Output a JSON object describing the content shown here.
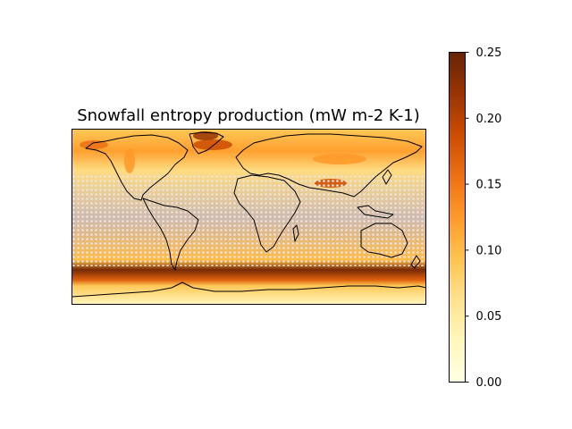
{
  "map": {
    "title": "Snowfall entropy production (mW m-2 K-1)",
    "projection": "PlateCarree",
    "extent": {
      "lon": [
        -180,
        180
      ],
      "lat": [
        -90,
        90
      ]
    },
    "background_color": "#cdbab2",
    "stipple_color": "#f0e2d8",
    "coastline_color": "#000000",
    "features": [
      "coastlines",
      "stippling"
    ]
  },
  "colorbar": {
    "min": 0.0,
    "max": 0.25,
    "cmap": "YlOrBr",
    "stops": [
      "#ffffe5",
      "#fff7bc",
      "#fee391",
      "#fec44f",
      "#fe9929",
      "#ec7014",
      "#cc4c02",
      "#993404",
      "#662506"
    ],
    "tick_labels": [
      "0.00",
      "0.05",
      "0.10",
      "0.15",
      "0.20",
      "0.25"
    ]
  },
  "chart_data": {
    "type": "heatmap",
    "title": "Snowfall entropy production (mW m-2 K-1)",
    "zlim": [
      0.0,
      0.25
    ],
    "regions": [
      {
        "lat_range": [
          -62,
          -47
        ],
        "lon_range": [
          -180,
          180
        ],
        "level": 0.24
      },
      {
        "lat_range": [
          -68,
          -62
        ],
        "lon_range": [
          -180,
          180
        ],
        "level": 0.17
      },
      {
        "lat_range": [
          -74,
          -68
        ],
        "lon_range": [
          -180,
          180
        ],
        "level": 0.09
      },
      {
        "lat_range": [
          -47,
          -42
        ],
        "lon_range": [
          -180,
          180
        ],
        "level": 0.1
      },
      {
        "lat_range": [
          55,
          80
        ],
        "lon_range": [
          -180,
          180
        ],
        "level": 0.12
      },
      {
        "lat_range": [
          40,
          55
        ],
        "lon_range": [
          -180,
          180
        ],
        "level": 0.07
      },
      {
        "lat_range": [
          -42,
          40
        ],
        "lon_range": [
          -180,
          180
        ],
        "level": 0.0
      }
    ]
  }
}
